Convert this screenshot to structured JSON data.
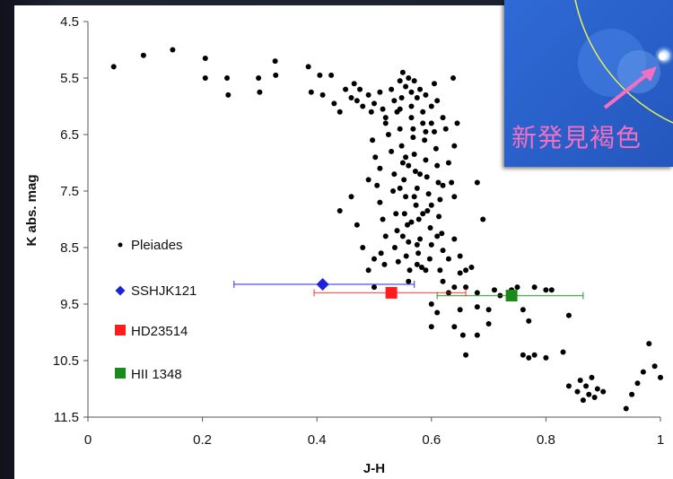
{
  "chart_data": {
    "type": "scatter",
    "title": "",
    "xlabel": "J-H",
    "ylabel": "K abs. mag",
    "xlim": [
      0,
      1
    ],
    "ylim": [
      11.5,
      4.5
    ],
    "y_inverted": true,
    "xticks": [
      "0",
      "0.2",
      "0.4",
      "0.6",
      "0.8",
      "1"
    ],
    "yticks": [
      "4.5",
      "5.5",
      "6.5",
      "7.5",
      "8.5",
      "9.5",
      "10.5",
      "11.5"
    ],
    "grid": false,
    "legend_position": "left",
    "series": [
      {
        "name": "Pleiades",
        "marker": "circle",
        "color": "#000000",
        "points": [
          [
            0.045,
            5.3
          ],
          [
            0.097,
            5.1
          ],
          [
            0.148,
            5.0
          ],
          [
            0.205,
            5.15
          ],
          [
            0.205,
            5.5
          ],
          [
            0.243,
            5.5
          ],
          [
            0.245,
            5.8
          ],
          [
            0.298,
            5.5
          ],
          [
            0.3,
            5.75
          ],
          [
            0.327,
            5.2
          ],
          [
            0.328,
            5.45
          ],
          [
            0.385,
            5.3
          ],
          [
            0.39,
            5.75
          ],
          [
            0.405,
            5.45
          ],
          [
            0.41,
            5.8
          ],
          [
            0.425,
            5.45
          ],
          [
            0.43,
            5.95
          ],
          [
            0.44,
            6.1
          ],
          [
            0.45,
            5.7
          ],
          [
            0.46,
            5.85
          ],
          [
            0.465,
            5.6
          ],
          [
            0.47,
            5.9
          ],
          [
            0.475,
            5.7
          ],
          [
            0.48,
            6.0
          ],
          [
            0.49,
            5.8
          ],
          [
            0.495,
            6.1
          ],
          [
            0.5,
            5.95
          ],
          [
            0.51,
            5.75
          ],
          [
            0.515,
            6.05
          ],
          [
            0.52,
            6.2
          ],
          [
            0.53,
            5.7
          ],
          [
            0.535,
            5.9
          ],
          [
            0.54,
            6.1
          ],
          [
            0.545,
            5.55
          ],
          [
            0.548,
            5.85
          ],
          [
            0.55,
            5.4
          ],
          [
            0.555,
            5.65
          ],
          [
            0.56,
            5.5
          ],
          [
            0.565,
            5.75
          ],
          [
            0.57,
            5.55
          ],
          [
            0.575,
            5.85
          ],
          [
            0.58,
            5.7
          ],
          [
            0.59,
            5.8
          ],
          [
            0.6,
            6.0
          ],
          [
            0.605,
            5.6
          ],
          [
            0.61,
            5.9
          ],
          [
            0.62,
            6.2
          ],
          [
            0.625,
            6.4
          ],
          [
            0.638,
            5.5
          ],
          [
            0.64,
            6.7
          ],
          [
            0.645,
            6.3
          ],
          [
            0.63,
            7.0
          ],
          [
            0.635,
            7.35
          ],
          [
            0.64,
            7.6
          ],
          [
            0.497,
            6.6
          ],
          [
            0.502,
            6.9
          ],
          [
            0.51,
            7.1
          ],
          [
            0.505,
            7.4
          ],
          [
            0.51,
            7.7
          ],
          [
            0.515,
            8.0
          ],
          [
            0.52,
            8.3
          ],
          [
            0.512,
            8.6
          ],
          [
            0.518,
            8.8
          ],
          [
            0.52,
            6.3
          ],
          [
            0.525,
            6.5
          ],
          [
            0.53,
            6.8
          ],
          [
            0.535,
            7.2
          ],
          [
            0.533,
            7.5
          ],
          [
            0.538,
            7.9
          ],
          [
            0.54,
            8.2
          ],
          [
            0.536,
            8.5
          ],
          [
            0.542,
            8.75
          ],
          [
            0.545,
            6.4
          ],
          [
            0.548,
            6.7
          ],
          [
            0.55,
            7.0
          ],
          [
            0.552,
            7.3
          ],
          [
            0.555,
            7.6
          ],
          [
            0.553,
            7.9
          ],
          [
            0.558,
            8.1
          ],
          [
            0.56,
            8.4
          ],
          [
            0.556,
            8.65
          ],
          [
            0.562,
            8.9
          ],
          [
            0.565,
            6.2
          ],
          [
            0.568,
            6.55
          ],
          [
            0.57,
            6.85
          ],
          [
            0.572,
            7.15
          ],
          [
            0.575,
            7.45
          ],
          [
            0.573,
            7.75
          ],
          [
            0.578,
            8.0
          ],
          [
            0.58,
            8.35
          ],
          [
            0.577,
            8.6
          ],
          [
            0.583,
            8.85
          ],
          [
            0.585,
            6.3
          ],
          [
            0.588,
            6.6
          ],
          [
            0.59,
            6.95
          ],
          [
            0.592,
            7.25
          ],
          [
            0.595,
            7.55
          ],
          [
            0.593,
            7.85
          ],
          [
            0.598,
            8.15
          ],
          [
            0.6,
            8.45
          ],
          [
            0.597,
            8.7
          ],
          [
            0.605,
            6.45
          ],
          [
            0.608,
            6.75
          ],
          [
            0.61,
            7.05
          ],
          [
            0.612,
            7.35
          ],
          [
            0.615,
            7.65
          ],
          [
            0.613,
            7.95
          ],
          [
            0.618,
            8.25
          ],
          [
            0.62,
            8.55
          ],
          [
            0.545,
            6.05
          ],
          [
            0.565,
            6.0
          ],
          [
            0.585,
            6.1
          ],
          [
            0.56,
            7.05
          ],
          [
            0.57,
            7.6
          ],
          [
            0.58,
            7.2
          ],
          [
            0.59,
            6.45
          ],
          [
            0.6,
            7.75
          ],
          [
            0.55,
            8.3
          ],
          [
            0.565,
            8.05
          ],
          [
            0.575,
            8.8
          ],
          [
            0.59,
            8.9
          ],
          [
            0.615,
            8.9
          ],
          [
            0.63,
            8.7
          ],
          [
            0.555,
            6.9
          ],
          [
            0.568,
            6.4
          ],
          [
            0.585,
            7.9
          ],
          [
            0.6,
            6.3
          ],
          [
            0.62,
            7.4
          ],
          [
            0.61,
            8.3
          ],
          [
            0.545,
            7.45
          ],
          [
            0.575,
            8.45
          ],
          [
            0.44,
            7.85
          ],
          [
            0.46,
            7.6
          ],
          [
            0.47,
            8.1
          ],
          [
            0.48,
            8.5
          ],
          [
            0.49,
            7.3
          ],
          [
            0.49,
            8.9
          ],
          [
            0.5,
            9.2
          ],
          [
            0.5,
            8.7
          ],
          [
            0.56,
            9.1
          ],
          [
            0.62,
            9.1
          ],
          [
            0.63,
            9.3
          ],
          [
            0.64,
            9.2
          ],
          [
            0.65,
            8.95
          ],
          [
            0.66,
            8.9
          ],
          [
            0.67,
            8.85
          ],
          [
            0.64,
            8.35
          ],
          [
            0.65,
            8.65
          ],
          [
            0.66,
            9.2
          ],
          [
            0.68,
            9.3
          ],
          [
            0.68,
            7.35
          ],
          [
            0.69,
            8.0
          ],
          [
            0.6,
            9.5
          ],
          [
            0.61,
            9.65
          ],
          [
            0.6,
            9.9
          ],
          [
            0.64,
            9.9
          ],
          [
            0.65,
            9.6
          ],
          [
            0.655,
            10.05
          ],
          [
            0.68,
            9.55
          ],
          [
            0.68,
            10.05
          ],
          [
            0.7,
            9.6
          ],
          [
            0.7,
            9.85
          ],
          [
            0.71,
            9.25
          ],
          [
            0.72,
            9.35
          ],
          [
            0.74,
            9.25
          ],
          [
            0.75,
            9.2
          ],
          [
            0.76,
            9.6
          ],
          [
            0.77,
            9.8
          ],
          [
            0.78,
            9.2
          ],
          [
            0.8,
            9.25
          ],
          [
            0.81,
            9.25
          ],
          [
            0.84,
            9.7
          ],
          [
            0.66,
            10.4
          ],
          [
            0.76,
            10.4
          ],
          [
            0.77,
            10.45
          ],
          [
            0.78,
            10.4
          ],
          [
            0.8,
            10.45
          ],
          [
            0.83,
            10.35
          ],
          [
            0.84,
            10.95
          ],
          [
            0.855,
            11.05
          ],
          [
            0.86,
            10.85
          ],
          [
            0.865,
            11.2
          ],
          [
            0.87,
            10.95
          ],
          [
            0.875,
            11.1
          ],
          [
            0.88,
            10.8
          ],
          [
            0.885,
            11.15
          ],
          [
            0.89,
            11.0
          ],
          [
            0.9,
            11.05
          ],
          [
            0.94,
            11.35
          ],
          [
            0.95,
            11.1
          ],
          [
            0.96,
            10.9
          ],
          [
            0.97,
            10.7
          ],
          [
            0.98,
            10.2
          ],
          [
            0.99,
            10.6
          ],
          [
            1.0,
            10.8
          ]
        ]
      },
      {
        "name": "SSHJK121",
        "marker": "diamond",
        "color": "#1e22d8",
        "points": [
          [
            0.41,
            9.15
          ]
        ],
        "x_err": [
          [
            0.255,
            0.57
          ]
        ]
      },
      {
        "name": "HD23514",
        "marker": "square",
        "color": "#ff1c1c",
        "points": [
          [
            0.53,
            9.3
          ]
        ],
        "x_err": [
          [
            0.395,
            0.66
          ]
        ]
      },
      {
        "name": "HII 1348",
        "marker": "square",
        "color": "#1a8a1a",
        "points": [
          [
            0.74,
            9.35
          ]
        ],
        "x_err": [
          [
            0.61,
            0.865
          ]
        ]
      }
    ]
  },
  "inset": {
    "caption": "新発見褐色",
    "arrow_color": "#f36fc1",
    "ring_color": "#e8f05a"
  }
}
